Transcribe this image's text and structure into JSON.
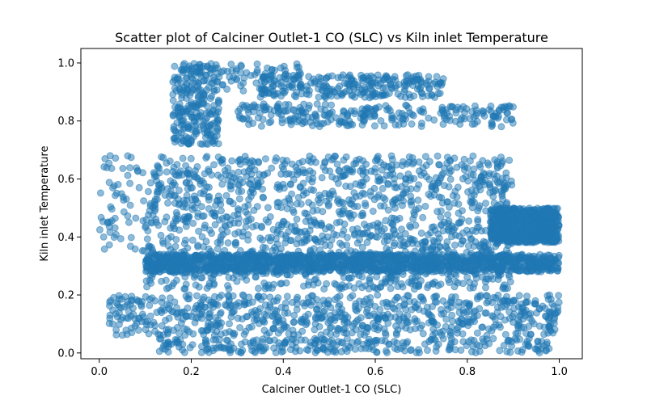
{
  "chart_data": {
    "type": "scatter",
    "title": "Scatter plot of Calciner Outlet-1 CO (SLC) vs Kiln inlet Temperature",
    "xlabel": "Calciner Outlet-1 CO (SLC)",
    "ylabel": "Kiln inlet Temperature",
    "xlim": [
      -0.04,
      1.05
    ],
    "ylim": [
      -0.02,
      1.05
    ],
    "x_ticks": [
      0.0,
      0.2,
      0.4,
      0.6,
      0.8,
      1.0
    ],
    "x_tick_labels": [
      "0.0",
      "0.2",
      "0.4",
      "0.6",
      "0.8",
      "1.0"
    ],
    "y_ticks": [
      0.0,
      0.2,
      0.4,
      0.6,
      0.8,
      1.0
    ],
    "y_tick_labels": [
      "0.0",
      "0.2",
      "0.4",
      "0.6",
      "0.8",
      "1.0"
    ],
    "grid": false,
    "legend": "none",
    "marker_color": "#1f77b4",
    "marker_alpha": 0.5,
    "clusters": [
      {
        "x_range": [
          0.1,
          0.9
        ],
        "y_range": [
          0.22,
          0.68
        ],
        "density": "very-high"
      },
      {
        "x_range": [
          0.1,
          1.0
        ],
        "y_range": [
          0.28,
          0.34
        ],
        "density": "very-high"
      },
      {
        "x_range": [
          0.85,
          1.0
        ],
        "y_range": [
          0.38,
          0.5
        ],
        "density": "high"
      },
      {
        "x_range": [
          0.02,
          1.0
        ],
        "y_range": [
          0.06,
          0.2
        ],
        "density": "high"
      },
      {
        "x_range": [
          0.13,
          0.98
        ],
        "y_range": [
          0.0,
          0.05
        ],
        "density": "medium"
      },
      {
        "x_range": [
          0.35,
          0.75
        ],
        "y_range": [
          0.88,
          0.96
        ],
        "density": "medium"
      },
      {
        "x_range": [
          0.3,
          0.9
        ],
        "y_range": [
          0.78,
          0.86
        ],
        "density": "medium"
      },
      {
        "x_range": [
          0.16,
          0.26
        ],
        "y_range": [
          0.72,
          1.0
        ],
        "density": "medium"
      },
      {
        "x_range": [
          0.25,
          0.45
        ],
        "y_range": [
          0.9,
          1.0
        ],
        "density": "low"
      },
      {
        "x_range": [
          0.0,
          0.1
        ],
        "y_range": [
          0.35,
          0.7
        ],
        "density": "low"
      }
    ]
  }
}
